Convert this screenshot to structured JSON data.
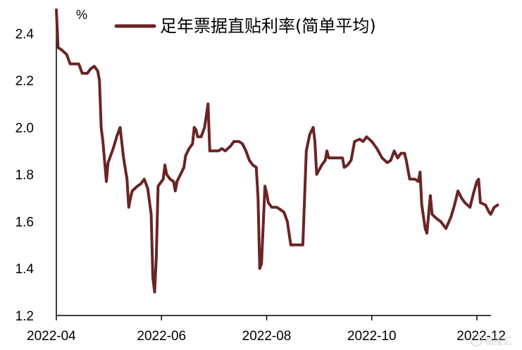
{
  "chart_data": {
    "type": "line",
    "title": "",
    "xlabel": "",
    "ylabel": "",
    "unit": "%",
    "ylim": [
      1.2,
      2.5
    ],
    "yticks": [
      "1.2",
      "1.4",
      "1.6",
      "1.8",
      "2.0",
      "2.2",
      "2.4"
    ],
    "xticks": [
      "2022-04",
      "2022-06",
      "2022-08",
      "2022-10",
      "2022-12"
    ],
    "grid": false,
    "legend_position": "top",
    "series": [
      {
        "name": "足年票据直贴利率(简单平均)",
        "color": "#6b2424",
        "points": [
          [
            "2022-04-01",
            2.5
          ],
          [
            "2022-04-02",
            2.34
          ],
          [
            "2022-04-04",
            2.33
          ],
          [
            "2022-04-07",
            2.31
          ],
          [
            "2022-04-09",
            2.27
          ],
          [
            "2022-04-12",
            2.27
          ],
          [
            "2022-04-14",
            2.27
          ],
          [
            "2022-04-16",
            2.23
          ],
          [
            "2022-04-19",
            2.23
          ],
          [
            "2022-04-21",
            2.25
          ],
          [
            "2022-04-23",
            2.26
          ],
          [
            "2022-04-25",
            2.24
          ],
          [
            "2022-04-26",
            2.2
          ],
          [
            "2022-04-27",
            2.0
          ],
          [
            "2022-04-28",
            1.94
          ],
          [
            "2022-04-30",
            1.77
          ],
          [
            "2022-05-01",
            1.85
          ],
          [
            "2022-05-04",
            1.91
          ],
          [
            "2022-05-06",
            1.96
          ],
          [
            "2022-05-08",
            2.0
          ],
          [
            "2022-05-10",
            1.87
          ],
          [
            "2022-05-12",
            1.78
          ],
          [
            "2022-05-13",
            1.66
          ],
          [
            "2022-05-14",
            1.7
          ],
          [
            "2022-05-15",
            1.73
          ],
          [
            "2022-05-18",
            1.75
          ],
          [
            "2022-05-20",
            1.76
          ],
          [
            "2022-05-22",
            1.78
          ],
          [
            "2022-05-24",
            1.74
          ],
          [
            "2022-05-26",
            1.63
          ],
          [
            "2022-05-27",
            1.36
          ],
          [
            "2022-05-28",
            1.3
          ],
          [
            "2022-05-29",
            1.45
          ],
          [
            "2022-05-30",
            1.75
          ],
          [
            "2022-06-01",
            1.77
          ],
          [
            "2022-06-02",
            1.78
          ],
          [
            "2022-06-03",
            1.84
          ],
          [
            "2022-06-04",
            1.8
          ],
          [
            "2022-06-06",
            1.78
          ],
          [
            "2022-06-08",
            1.77
          ],
          [
            "2022-06-09",
            1.73
          ],
          [
            "2022-06-10",
            1.77
          ],
          [
            "2022-06-12",
            1.8
          ],
          [
            "2022-06-14",
            1.83
          ],
          [
            "2022-06-15",
            1.88
          ],
          [
            "2022-06-17",
            1.91
          ],
          [
            "2022-06-19",
            1.93
          ],
          [
            "2022-06-20",
            2.0
          ],
          [
            "2022-06-21",
            1.99
          ],
          [
            "2022-06-22",
            1.96
          ],
          [
            "2022-06-24",
            1.96
          ],
          [
            "2022-06-26",
            2.0
          ],
          [
            "2022-06-28",
            2.1
          ],
          [
            "2022-06-29",
            1.9
          ],
          [
            "2022-07-01",
            1.9
          ],
          [
            "2022-07-04",
            1.9
          ],
          [
            "2022-07-06",
            1.91
          ],
          [
            "2022-07-08",
            1.9
          ],
          [
            "2022-07-11",
            1.92
          ],
          [
            "2022-07-13",
            1.94
          ],
          [
            "2022-07-16",
            1.94
          ],
          [
            "2022-07-18",
            1.93
          ],
          [
            "2022-07-20",
            1.9
          ],
          [
            "2022-07-22",
            1.86
          ],
          [
            "2022-07-24",
            1.84
          ],
          [
            "2022-07-26",
            1.83
          ],
          [
            "2022-07-27",
            1.7
          ],
          [
            "2022-07-28",
            1.4
          ],
          [
            "2022-07-29",
            1.42
          ],
          [
            "2022-07-30",
            1.58
          ],
          [
            "2022-07-31",
            1.75
          ],
          [
            "2022-08-01",
            1.72
          ],
          [
            "2022-08-02",
            1.68
          ],
          [
            "2022-08-04",
            1.66
          ],
          [
            "2022-08-07",
            1.66
          ],
          [
            "2022-08-09",
            1.65
          ],
          [
            "2022-08-11",
            1.64
          ],
          [
            "2022-08-13",
            1.6
          ],
          [
            "2022-08-14",
            1.55
          ],
          [
            "2022-08-15",
            1.5
          ],
          [
            "2022-08-18",
            1.5
          ],
          [
            "2022-08-22",
            1.5
          ],
          [
            "2022-08-24",
            1.9
          ],
          [
            "2022-08-26",
            1.97
          ],
          [
            "2022-08-28",
            2.0
          ],
          [
            "2022-08-29",
            1.94
          ],
          [
            "2022-08-30",
            1.8
          ],
          [
            "2022-09-02",
            1.84
          ],
          [
            "2022-09-04",
            1.86
          ],
          [
            "2022-09-05",
            1.9
          ],
          [
            "2022-09-06",
            1.87
          ],
          [
            "2022-09-08",
            1.87
          ],
          [
            "2022-09-11",
            1.87
          ],
          [
            "2022-09-14",
            1.87
          ],
          [
            "2022-09-15",
            1.83
          ],
          [
            "2022-09-17",
            1.84
          ],
          [
            "2022-09-19",
            1.86
          ],
          [
            "2022-09-21",
            1.94
          ],
          [
            "2022-09-24",
            1.95
          ],
          [
            "2022-09-26",
            1.94
          ],
          [
            "2022-09-28",
            1.96
          ],
          [
            "2022-10-01",
            1.94
          ],
          [
            "2022-10-04",
            1.91
          ],
          [
            "2022-10-07",
            1.87
          ],
          [
            "2022-10-10",
            1.85
          ],
          [
            "2022-10-12",
            1.86
          ],
          [
            "2022-10-14",
            1.9
          ],
          [
            "2022-10-16",
            1.87
          ],
          [
            "2022-10-18",
            1.89
          ],
          [
            "2022-10-20",
            1.89
          ],
          [
            "2022-10-21",
            1.86
          ],
          [
            "2022-10-23",
            1.78
          ],
          [
            "2022-10-26",
            1.78
          ],
          [
            "2022-10-28",
            1.77
          ],
          [
            "2022-10-29",
            1.81
          ],
          [
            "2022-10-30",
            1.67
          ],
          [
            "2022-11-01",
            1.57
          ],
          [
            "2022-11-02",
            1.55
          ],
          [
            "2022-11-04",
            1.71
          ],
          [
            "2022-11-05",
            1.63
          ],
          [
            "2022-11-08",
            1.61
          ],
          [
            "2022-11-10",
            1.6
          ],
          [
            "2022-11-13",
            1.57
          ],
          [
            "2022-11-16",
            1.62
          ],
          [
            "2022-11-18",
            1.67
          ],
          [
            "2022-11-20",
            1.73
          ],
          [
            "2022-11-22",
            1.7
          ],
          [
            "2022-11-24",
            1.68
          ],
          [
            "2022-11-27",
            1.66
          ],
          [
            "2022-11-29",
            1.72
          ],
          [
            "2022-12-01",
            1.77
          ],
          [
            "2022-12-02",
            1.78
          ],
          [
            "2022-12-03",
            1.68
          ],
          [
            "2022-12-06",
            1.67
          ],
          [
            "2022-12-08",
            1.64
          ],
          [
            "2022-12-09",
            1.63
          ],
          [
            "2022-12-11",
            1.66
          ],
          [
            "2022-12-13",
            1.67
          ]
        ]
      }
    ]
  },
  "watermark": "格隆汇"
}
